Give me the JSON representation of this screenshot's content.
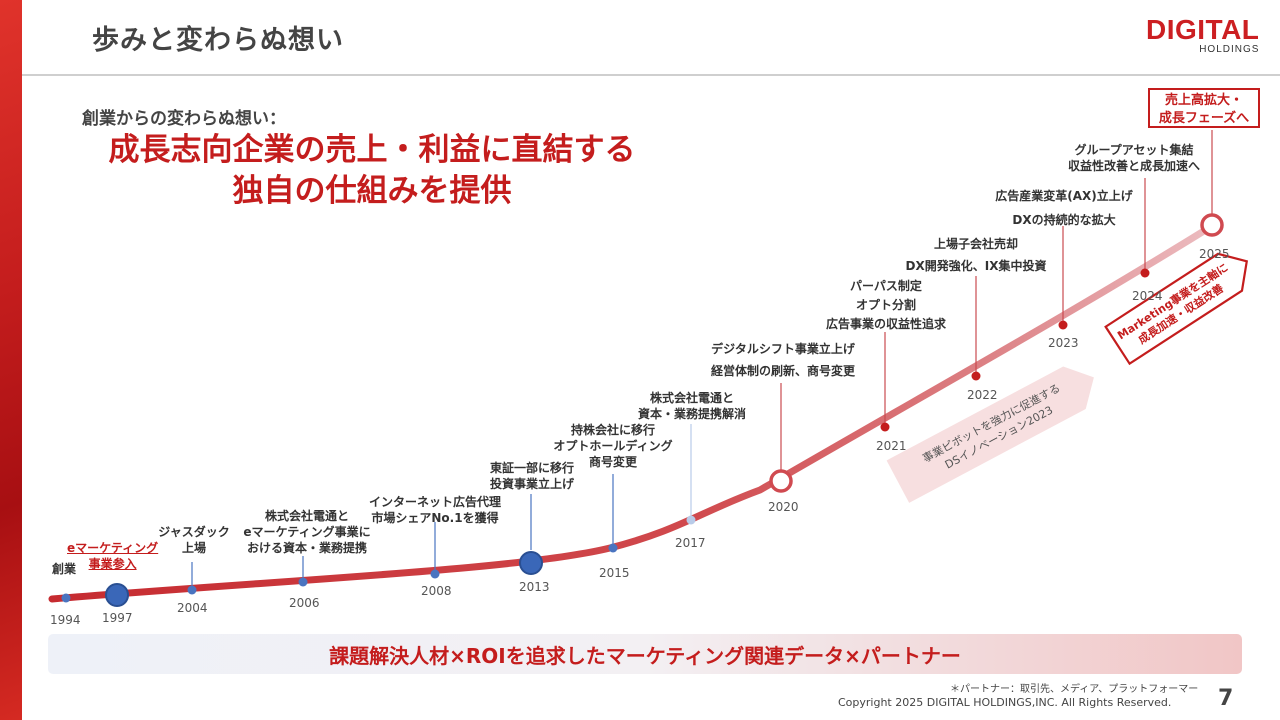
{
  "page": {
    "title": "歩みと変わらぬ想い",
    "number": "7"
  },
  "logo": {
    "line1": "DIGITAL",
    "line2": "HOLDINGS"
  },
  "intro": "創業からの変わらぬ想い：",
  "main_message": {
    "line1": "成長志向企業の売上・利益に直結する",
    "line2": "独自の仕組みを提供"
  },
  "years": [
    "1994",
    "1997",
    "2004",
    "2006",
    "2008",
    "2013",
    "2015",
    "2017",
    "2020",
    "2021",
    "2022",
    "2023",
    "2024",
    "2025"
  ],
  "events": {
    "e1994": "創業",
    "e1997_l1": "eマーケティング",
    "e1997_l2": "事業参入",
    "e2004_l1": "ジャスダック",
    "e2004_l2": "上場",
    "e2006_l1": "株式会社電通と",
    "e2006_l2": "eマーケティング事業に",
    "e2006_l3": "おける資本・業務提携",
    "e2008_l1": "インターネット広告代理",
    "e2008_l2": "市場シェアNo.1を獲得",
    "e2013_l1": "東証一部に移行",
    "e2013_l2": "投資事業立上げ",
    "e2015_l1": "持株会社に移行",
    "e2015_l2": "オプトホールディング",
    "e2015_l3": "商号変更",
    "e2017_l1": "株式会社電通と",
    "e2017_l2": "資本・業務提携解消",
    "e2020_l1": "デジタルシフト事業立上げ",
    "e2020_l2": "経営体制の刷新、商号変更",
    "e2021_l1": "パーパス制定",
    "e2021_l2": "オプト分割",
    "e2021_l3": "広告事業の収益性追求",
    "e2022_l1": "上場子会社売却",
    "e2022_l2": "DX開発強化、IX集中投資",
    "e2023_l1": "広告産業変革(AX)立上げ",
    "e2023_l2": "DXの持続的な拡大",
    "e2024_l1": "グループアセット集結",
    "e2024_l2": "収益性改善と成長加速へ"
  },
  "goal": {
    "line1": "売上高拡大・",
    "line2": "成長フェーズへ"
  },
  "arrow_2023": {
    "line1": "事業ピボットを強力に促進する",
    "line2": "DSイノベーション2023"
  },
  "arrow_2025": {
    "line1": "Marketing事業を主軸に",
    "line2": "成長加速・収益改善"
  },
  "banner": "課題解決人材×ROIを追求したマーケティング関連データ×パートナー",
  "footnote": "＊パートナー：取引先、メディア、プラットフォーマー",
  "copyright": "Copyright 2025 DIGITAL HOLDINGS,INC. All Rights Reserved.",
  "colors": {
    "brand_red": "#c41d1d",
    "node_blue": "#3a67b8"
  }
}
